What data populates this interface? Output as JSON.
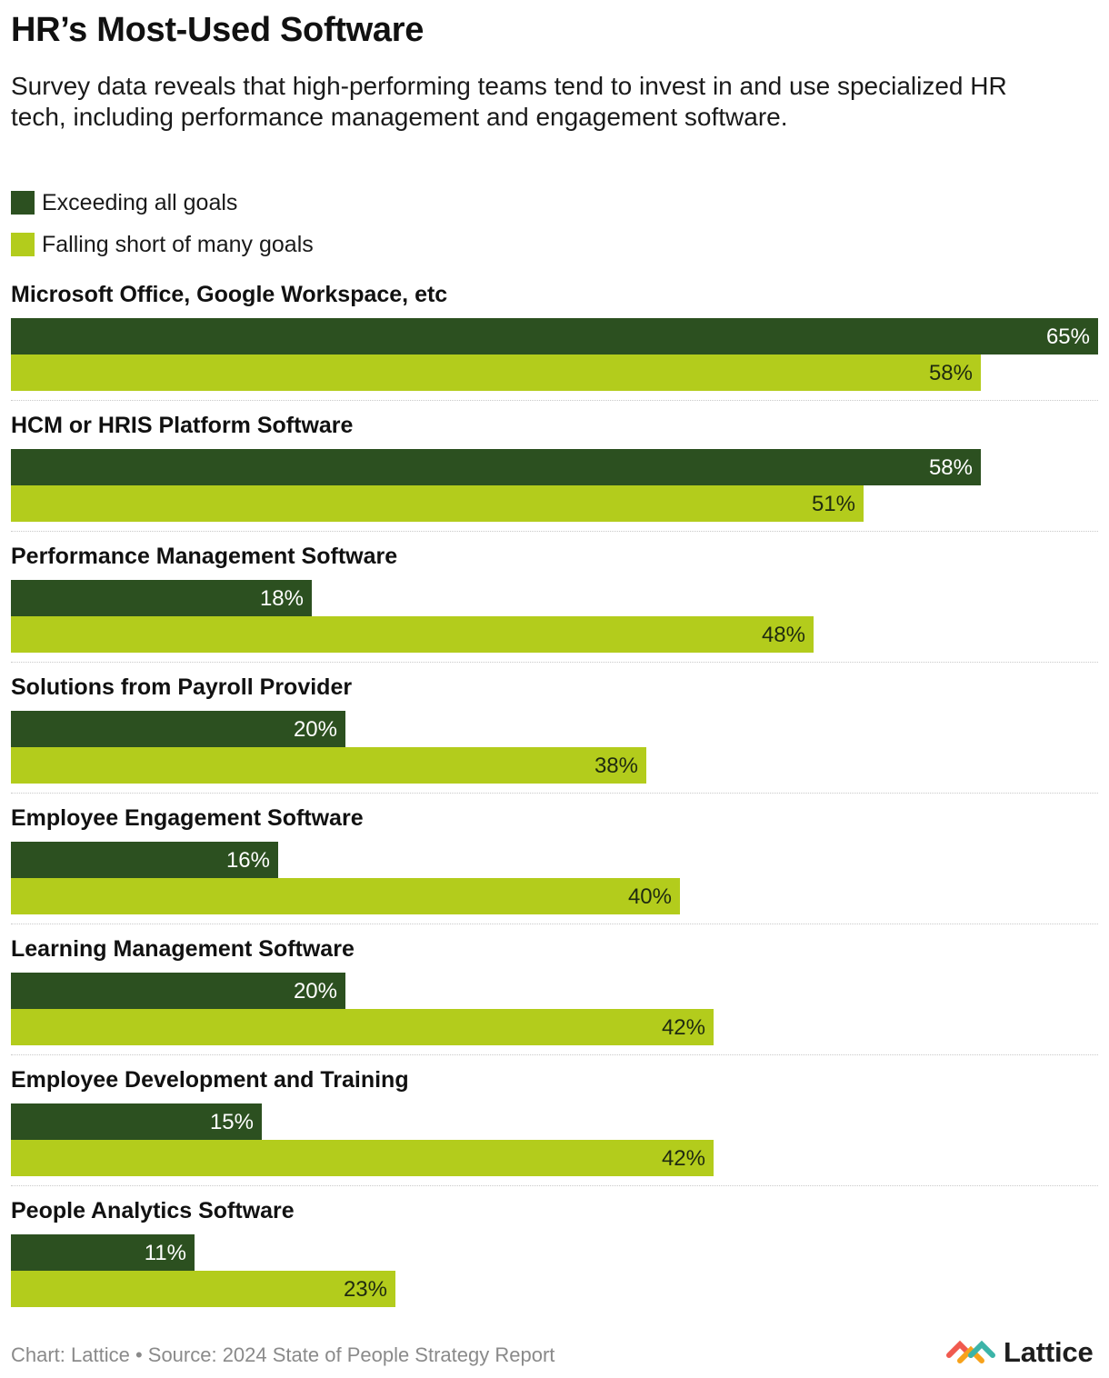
{
  "header": {
    "title": "HR’s Most-Used Software",
    "subtitle": "Survey data reveals that high-performing teams tend to invest in and use specialized HR tech, including performance management and engagement software."
  },
  "legend": [
    {
      "label": "Exceeding all goals",
      "color": "#2c5020"
    },
    {
      "label": "Falling short of many goals",
      "color": "#b3cc1c"
    }
  ],
  "chart_data": {
    "type": "bar",
    "orientation": "horizontal",
    "title": "HR’s Most-Used Software",
    "unit": "%",
    "xlim": [
      0,
      65
    ],
    "categories": [
      "Microsoft Office, Google Workspace, etc",
      "HCM or HRIS Platform Software",
      "Performance Management Software",
      "Solutions from Payroll Provider",
      "Employee Engagement Software",
      "Learning Management Software",
      "Employee Development and Training",
      "People Analytics Software"
    ],
    "series": [
      {
        "name": "Exceeding all goals",
        "color": "#2c5020",
        "values": [
          65,
          58,
          18,
          20,
          16,
          20,
          15,
          11
        ]
      },
      {
        "name": "Falling short of many goals",
        "color": "#b3cc1c",
        "values": [
          58,
          51,
          48,
          38,
          40,
          42,
          42,
          23
        ]
      }
    ]
  },
  "footer": {
    "text": "Chart: Lattice • Source: 2024 State of People Strategy Report"
  },
  "brand": {
    "name": "Lattice",
    "logo_icon": "lattice-logo-icon"
  }
}
